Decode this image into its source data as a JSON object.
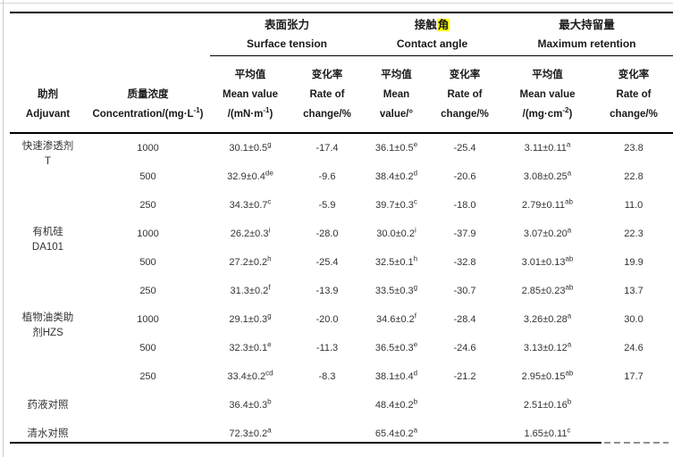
{
  "colors": {
    "highlight": "#ffff00",
    "rule": "#000000",
    "text": "#333333",
    "page_edge": "#cccccc",
    "faded_rule_dash": "#8f8f8f"
  },
  "table": {
    "groups": [
      {
        "zh": "表面张力",
        "en": "Surface tension"
      },
      {
        "zh_pre": "接触",
        "zh_mark": "角",
        "en": "Contact angle"
      },
      {
        "zh": "最大持留量",
        "en": "Maximum retention"
      }
    ],
    "columns": [
      {
        "label": "助剂\nAdjuvant"
      },
      {
        "label": "质量浓度\nConcentration/(mg·L^{-1})"
      },
      {
        "label": "平均值\nMean value\n/(mN·m^{-1})"
      },
      {
        "label": "变化率\nRate of\nchange/%"
      },
      {
        "label": "平均值\nMean\nvalue/°"
      },
      {
        "label": "变化率\nRate of\nchange/%"
      },
      {
        "label": "平均值\nMean value\n/(mg·cm^{-2})"
      },
      {
        "label": "变化率\nRate of\nchange/%"
      }
    ],
    "rows": [
      {
        "adjuvant": "快速渗透剂\nT",
        "adjuvant_rowspan": 3,
        "conc": "1000",
        "st_mean": "30.1±0.5^{g}",
        "st_rate": "-17.4",
        "ca_mean": "36.1±0.5^{e}",
        "ca_rate": "-25.4",
        "mr_mean": "3.11±0.11^{a}",
        "mr_rate": "23.8"
      },
      {
        "conc": "500",
        "st_mean": "32.9±0.4^{de}",
        "st_rate": "-9.6",
        "ca_mean": "38.4±0.2^{d}",
        "ca_rate": "-20.6",
        "mr_mean": "3.08±0.25^{a}",
        "mr_rate": "22.8"
      },
      {
        "conc": "250",
        "st_mean": "34.3±0.7^{c}",
        "st_rate": "-5.9",
        "ca_mean": "39.7±0.3^{c}",
        "ca_rate": "-18.0",
        "mr_mean": "2.79±0.11^{ab}",
        "mr_rate": "11.0"
      },
      {
        "adjuvant": "有机硅\nDA101",
        "adjuvant_rowspan": 3,
        "conc": "1000",
        "st_mean": "26.2±0.3^{i}",
        "st_rate": "-28.0",
        "ca_mean": "30.0±0.2^{i}",
        "ca_rate": "-37.9",
        "mr_mean": "3.07±0.20^{a}",
        "mr_rate": "22.3"
      },
      {
        "conc": "500",
        "st_mean": "27.2±0.2^{h}",
        "st_rate": "-25.4",
        "ca_mean": "32.5±0.1^{h}",
        "ca_rate": "-32.8",
        "mr_mean": "3.01±0.13^{ab}",
        "mr_rate": "19.9"
      },
      {
        "conc": "250",
        "st_mean": "31.3±0.2^{f}",
        "st_rate": "-13.9",
        "ca_mean": "33.5±0.3^{g}",
        "ca_rate": "-30.7",
        "mr_mean": "2.85±0.23^{ab}",
        "mr_rate": "13.7"
      },
      {
        "adjuvant": "植物油类助\n剂HZS",
        "adjuvant_rowspan": 3,
        "conc": "1000",
        "st_mean": "29.1±0.3^{g}",
        "st_rate": "-20.0",
        "ca_mean": "34.6±0.2^{f}",
        "ca_rate": "-28.4",
        "mr_mean": "3.26±0.28^{a}",
        "mr_rate": "30.0"
      },
      {
        "conc": "500",
        "st_mean": "32.3±0.1^{e}",
        "st_rate": "-11.3",
        "ca_mean": "36.5±0.3^{e}",
        "ca_rate": "-24.6",
        "mr_mean": "3.13±0.12^{a}",
        "mr_rate": "24.6"
      },
      {
        "conc": "250",
        "st_mean": "33.4±0.2^{cd}",
        "st_rate": "-8.3",
        "ca_mean": "38.1±0.4^{d}",
        "ca_rate": "-21.2",
        "mr_mean": "2.95±0.15^{ab}",
        "mr_rate": "17.7"
      },
      {
        "adjuvant": "药液对照",
        "adjuvant_rowspan": 1,
        "conc": "",
        "st_mean": "36.4±0.3^{b}",
        "st_rate": "",
        "ca_mean": "48.4±0.2^{b}",
        "ca_rate": "",
        "mr_mean": "2.51±0.16^{b}",
        "mr_rate": ""
      },
      {
        "adjuvant": "清水对照",
        "adjuvant_rowspan": 1,
        "conc": "",
        "st_mean": "72.3±0.2^{a}",
        "st_rate": "",
        "ca_mean": "65.4±0.2^{a}",
        "ca_rate": "",
        "mr_mean": "1.65±0.11^{c}",
        "mr_rate": ""
      }
    ]
  }
}
